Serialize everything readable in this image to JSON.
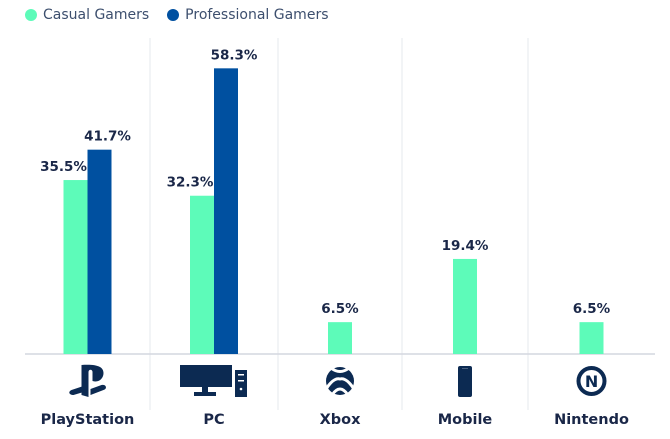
{
  "chart_data": {
    "type": "bar",
    "categories": [
      "PlayStation",
      "PC",
      "Xbox",
      "Mobile",
      "Nintendo"
    ],
    "series": [
      {
        "name": "Casual Gamers",
        "color": "#5dfbb9",
        "values": [
          35.5,
          32.3,
          6.5,
          19.4,
          6.5
        ]
      },
      {
        "name": "Professional Gamers",
        "color": "#0050a0",
        "values": [
          41.7,
          58.3,
          null,
          null,
          null
        ]
      }
    ],
    "value_suffix": "%",
    "icons": [
      "playstation-icon",
      "pc-icon",
      "xbox-icon",
      "mobile-icon",
      "nintendo-icon"
    ],
    "ylim": [
      0,
      60
    ],
    "legend": "top-left"
  }
}
